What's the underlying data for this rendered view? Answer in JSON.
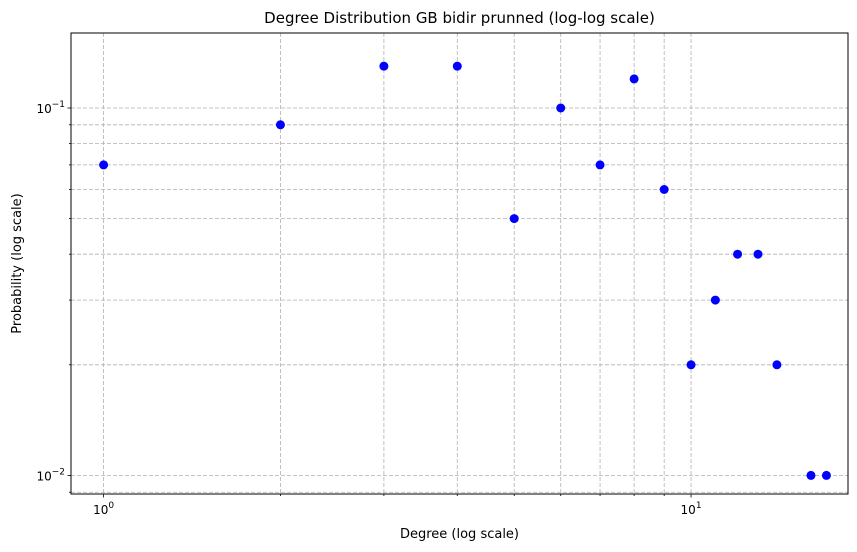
{
  "chart_data": {
    "type": "scatter",
    "title": "Degree Distribution GB bidir prunned (log-log scale)",
    "xlabel": "Degree (log scale)",
    "ylabel": "Probability (log scale)",
    "xscale": "log",
    "yscale": "log",
    "xlim": [
      0.88,
      18.5
    ],
    "ylim": [
      0.0089,
      0.16
    ],
    "grid": true,
    "marker_color": "#0000ff",
    "x_ticks": [
      {
        "value": 1,
        "base": "10",
        "exp": "0"
      },
      {
        "value": 10,
        "base": "10",
        "exp": "1"
      }
    ],
    "y_ticks": [
      {
        "value": 0.01,
        "base": "10",
        "exp": "−2"
      },
      {
        "value": 0.1,
        "base": "10",
        "exp": "−1"
      }
    ],
    "points": [
      {
        "x": 1,
        "y": 0.07
      },
      {
        "x": 2,
        "y": 0.09
      },
      {
        "x": 3,
        "y": 0.13
      },
      {
        "x": 4,
        "y": 0.13
      },
      {
        "x": 5,
        "y": 0.05
      },
      {
        "x": 6,
        "y": 0.1
      },
      {
        "x": 7,
        "y": 0.07
      },
      {
        "x": 8,
        "y": 0.12
      },
      {
        "x": 9,
        "y": 0.06
      },
      {
        "x": 10,
        "y": 0.02
      },
      {
        "x": 11,
        "y": 0.03
      },
      {
        "x": 12,
        "y": 0.04
      },
      {
        "x": 13,
        "y": 0.04
      },
      {
        "x": 14,
        "y": 0.02
      },
      {
        "x": 16,
        "y": 0.01
      },
      {
        "x": 17,
        "y": 0.01
      }
    ]
  }
}
